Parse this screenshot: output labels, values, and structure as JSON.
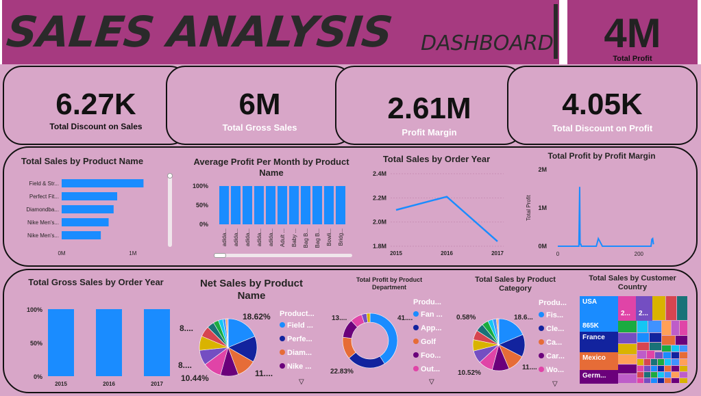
{
  "header": {
    "title": "SALES ANALYSIS",
    "subtitle": "DASHBOARD",
    "total_profit_value": "4M",
    "total_profit_label": "Total Profit"
  },
  "kpis": [
    {
      "value": "6.27K",
      "label": "Total Discount on Sales"
    },
    {
      "value": "6M",
      "label": "Total Gross Sales"
    },
    {
      "value": "2.61M",
      "label": "Profit Margin"
    },
    {
      "value": "4.05K",
      "label": "Total Discount on Profit"
    }
  ],
  "colors": {
    "accent": "#1a8cff",
    "header_bg": "#a63a80",
    "page_bg": "#d8a6c8",
    "navy": "#12239e",
    "orange": "#e66c37",
    "purple": "#6b007b",
    "pink": "#e044a7"
  },
  "chart_data": [
    {
      "type": "bar",
      "title": "Total Sales by Product Name",
      "orientation": "horizontal",
      "categories": [
        "Field & Str...",
        "Perfect Fit...",
        "Diamondba...",
        "Nike Men's...",
        "Nike Men's..."
      ],
      "values": [
        1.15,
        0.78,
        0.73,
        0.66,
        0.55
      ],
      "unit": "M",
      "xticks": [
        "0M",
        "1M"
      ],
      "xlim": [
        0,
        1.3
      ]
    },
    {
      "type": "bar",
      "title": "Average Profit Per Month by Product Name",
      "categories": [
        "adida...",
        "adida...",
        "adida...",
        "adida...",
        "adida...",
        "Adult ...",
        "Baby ...",
        "Bag B...",
        "Bag B...",
        "Bowli...",
        "Bridg..."
      ],
      "values": [
        100,
        100,
        100,
        100,
        100,
        100,
        100,
        100,
        100,
        100,
        100
      ],
      "yticks": [
        "0%",
        "50%",
        "100%"
      ],
      "ylim": [
        0,
        100
      ]
    },
    {
      "type": "line",
      "title": "Total Sales by Order Year",
      "x": [
        2015,
        2016,
        2017
      ],
      "values": [
        2.1,
        2.21,
        1.84
      ],
      "yticks": [
        "1.8M",
        "2.0M",
        "2.2M",
        "2.4M"
      ],
      "ylim": [
        1.8,
        2.4
      ]
    },
    {
      "type": "line",
      "title": "Total Profit by Profit Margin",
      "ylabel": "Total Profit",
      "x": [
        0,
        10,
        12,
        14,
        15,
        17,
        25,
        27,
        28,
        33,
        48,
        50,
        52,
        54,
        55,
        56,
        57,
        58,
        95,
        100,
        110,
        190,
        210,
        220,
        230,
        232,
        234,
        236
      ],
      "values": [
        0.0,
        0.0,
        0.0,
        0.0,
        0.0,
        0.0,
        0.0,
        0.0,
        0.0,
        0.0,
        0.0,
        0.0,
        0.0,
        1.55,
        0.05,
        0.05,
        0.05,
        0.0,
        0.0,
        0.2,
        0.0,
        0.0,
        0.0,
        0.0,
        0.0,
        0.18,
        0.2,
        0.05
      ],
      "yticks": [
        "0M",
        "1M",
        "2M"
      ],
      "xticks": [
        "0",
        "200"
      ],
      "ylim": [
        0,
        2
      ]
    },
    {
      "type": "bar",
      "title": "Total Gross Sales by Order Year",
      "categories": [
        "2015",
        "2016",
        "2017"
      ],
      "values": [
        100,
        100,
        100
      ],
      "yticks": [
        "0%",
        "50%",
        "100%"
      ],
      "ylim": [
        0,
        100
      ]
    },
    {
      "type": "pie",
      "title": "Net Sales by Product Name",
      "legend_title": "Product...",
      "legend": [
        "Field ...",
        "Perfe...",
        "Diam...",
        "Nike ..."
      ],
      "slices": [
        18.62,
        14.5,
        11.0,
        10.0,
        10.44,
        8.5,
        8.0,
        6.0,
        4.0,
        3.0,
        2.5,
        1.5,
        1.0,
        0.5
      ],
      "labels": [
        "18.62%",
        "11....",
        "10.44%",
        "8....",
        "8...."
      ]
    },
    {
      "type": "pie",
      "title": "Total Profit by Product Department",
      "legend_title": "Produ...",
      "legend": [
        "Fan ...",
        "App...",
        "Golf",
        "Foo...",
        "Out..."
      ],
      "slices": [
        41.0,
        22.83,
        13.0,
        11.0,
        7.0,
        3.0,
        2.0
      ],
      "labels": [
        "41....",
        "22.83%",
        "13...."
      ]
    },
    {
      "type": "pie",
      "title": "Total Sales by Product Category",
      "legend_title": "Produ...",
      "legend": [
        "Fis...",
        "Cle...",
        "Ca...",
        "Car...",
        "Wo..."
      ],
      "slices": [
        18.6,
        14.0,
        11.0,
        10.52,
        9.0,
        8.0,
        7.0,
        6.0,
        5.0,
        4.0,
        3.0,
        2.3,
        1.0,
        0.58
      ],
      "labels": [
        "18.6...",
        "11....",
        "10.52%",
        "0.58%"
      ]
    },
    {
      "type": "treemap",
      "title": "Total Sales by Customer Country",
      "items": [
        {
          "name": "USA",
          "value": "865K"
        },
        {
          "name": "France"
        },
        {
          "name": "Mexico"
        },
        {
          "name": "Germ..."
        },
        {
          "name": "2..."
        },
        {
          "name": "2..."
        }
      ]
    }
  ]
}
